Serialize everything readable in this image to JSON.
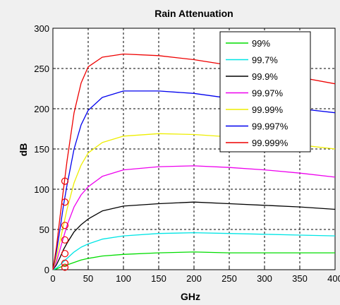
{
  "chart_data": {
    "type": "line",
    "title": "Rain Attenuation",
    "xlabel": "GHz",
    "ylabel": "dB",
    "xlim": [
      0,
      400
    ],
    "ylim": [
      0,
      300
    ],
    "x_ticks": [
      "0",
      "50",
      "100",
      "150",
      "200",
      "250",
      "300",
      "350",
      "400"
    ],
    "y_ticks": [
      "0",
      "50",
      "100",
      "150",
      "200",
      "250",
      "300"
    ],
    "grid": true,
    "legend_position": "top-right",
    "series": [
      {
        "name": "99%",
        "color": "#00dd00",
        "points": [
          [
            0,
            0
          ],
          [
            5,
            1
          ],
          [
            10,
            3
          ],
          [
            15,
            5
          ],
          [
            20,
            6
          ],
          [
            30,
            9
          ],
          [
            40,
            12
          ],
          [
            50,
            14
          ],
          [
            70,
            17
          ],
          [
            100,
            19
          ],
          [
            150,
            21
          ],
          [
            200,
            22
          ],
          [
            250,
            21
          ],
          [
            300,
            21
          ],
          [
            350,
            21
          ],
          [
            400,
            21
          ]
        ]
      },
      {
        "name": "99.7%",
        "color": "#00e5e5",
        "points": [
          [
            0,
            0
          ],
          [
            5,
            2
          ],
          [
            10,
            6
          ],
          [
            15,
            10
          ],
          [
            20,
            14
          ],
          [
            30,
            22
          ],
          [
            40,
            28
          ],
          [
            50,
            32
          ],
          [
            70,
            38
          ],
          [
            100,
            42
          ],
          [
            150,
            45
          ],
          [
            200,
            46
          ],
          [
            250,
            45
          ],
          [
            300,
            44
          ],
          [
            350,
            43
          ],
          [
            400,
            42
          ]
        ]
      },
      {
        "name": "99.9%",
        "color": "#000000",
        "points": [
          [
            0,
            0
          ],
          [
            5,
            6
          ],
          [
            10,
            15
          ],
          [
            15,
            25
          ],
          [
            20,
            33
          ],
          [
            30,
            47
          ],
          [
            40,
            56
          ],
          [
            50,
            63
          ],
          [
            70,
            73
          ],
          [
            100,
            79
          ],
          [
            150,
            82
          ],
          [
            200,
            84
          ],
          [
            250,
            82
          ],
          [
            300,
            80
          ],
          [
            350,
            78
          ],
          [
            400,
            75
          ]
        ]
      },
      {
        "name": "99.97%",
        "color": "#ee00ee",
        "points": [
          [
            0,
            0
          ],
          [
            5,
            10
          ],
          [
            10,
            25
          ],
          [
            15,
            40
          ],
          [
            20,
            55
          ],
          [
            30,
            78
          ],
          [
            40,
            93
          ],
          [
            50,
            103
          ],
          [
            70,
            116
          ],
          [
            100,
            124
          ],
          [
            150,
            128
          ],
          [
            200,
            129
          ],
          [
            250,
            127
          ],
          [
            300,
            124
          ],
          [
            350,
            120
          ],
          [
            400,
            115
          ]
        ]
      },
      {
        "name": "99.99%",
        "color": "#eeee00",
        "points": [
          [
            0,
            0
          ],
          [
            5,
            15
          ],
          [
            10,
            35
          ],
          [
            15,
            55
          ],
          [
            20,
            75
          ],
          [
            30,
            108
          ],
          [
            40,
            130
          ],
          [
            50,
            145
          ],
          [
            70,
            158
          ],
          [
            100,
            166
          ],
          [
            150,
            169
          ],
          [
            200,
            168
          ],
          [
            250,
            165
          ],
          [
            300,
            160
          ],
          [
            350,
            155
          ],
          [
            400,
            150
          ]
        ]
      },
      {
        "name": "99.997%",
        "color": "#0000ee",
        "points": [
          [
            0,
            0
          ],
          [
            5,
            22
          ],
          [
            10,
            50
          ],
          [
            15,
            80
          ],
          [
            20,
            105
          ],
          [
            30,
            150
          ],
          [
            40,
            180
          ],
          [
            50,
            198
          ],
          [
            70,
            214
          ],
          [
            100,
            222
          ],
          [
            150,
            222
          ],
          [
            200,
            219
          ],
          [
            250,
            213
          ],
          [
            300,
            206
          ],
          [
            350,
            200
          ],
          [
            400,
            195
          ]
        ]
      },
      {
        "name": "99.999%",
        "color": "#ee0000",
        "points": [
          [
            0,
            0
          ],
          [
            5,
            28
          ],
          [
            10,
            65
          ],
          [
            15,
            100
          ],
          [
            20,
            135
          ],
          [
            30,
            195
          ],
          [
            40,
            232
          ],
          [
            50,
            252
          ],
          [
            70,
            264
          ],
          [
            100,
            268
          ],
          [
            150,
            266
          ],
          [
            200,
            261
          ],
          [
            250,
            254
          ],
          [
            300,
            246
          ],
          [
            350,
            239
          ],
          [
            400,
            231
          ]
        ]
      }
    ],
    "markers": {
      "color": "#ee0000",
      "points": [
        [
          17,
          3
        ],
        [
          17,
          8
        ],
        [
          17,
          20
        ],
        [
          17,
          37
        ],
        [
          17,
          55
        ],
        [
          17,
          84
        ],
        [
          17,
          110
        ]
      ]
    }
  }
}
